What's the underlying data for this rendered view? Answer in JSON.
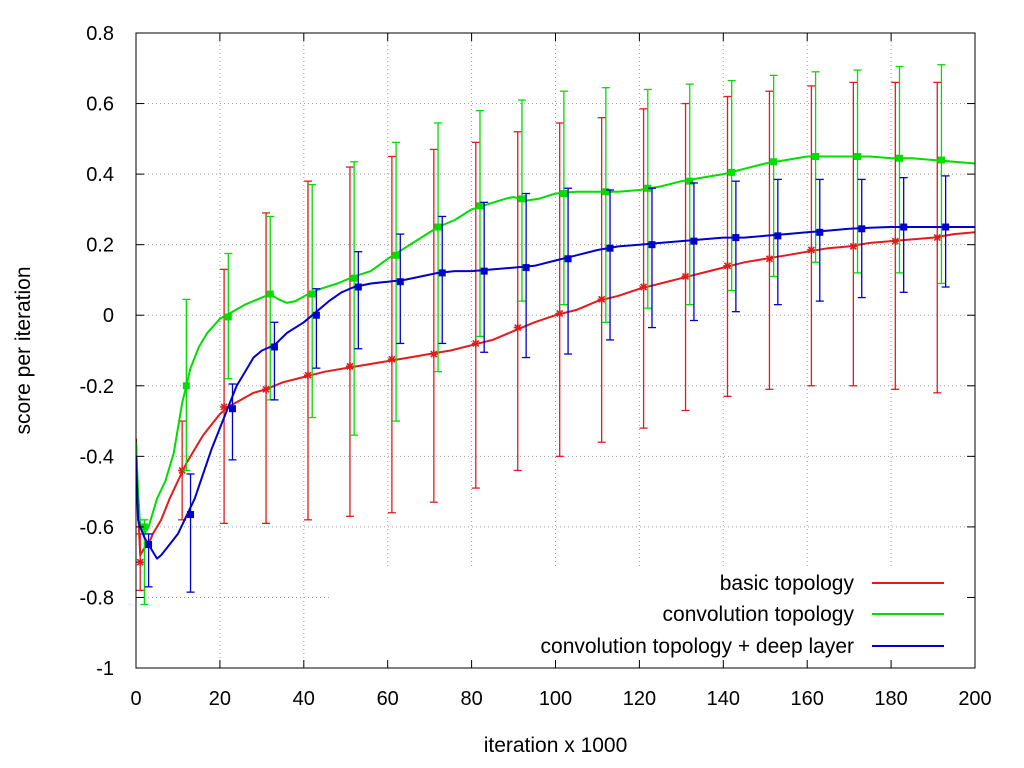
{
  "chart_data": {
    "type": "line",
    "title": "",
    "xlabel": "iteration x 1000",
    "ylabel": "score per iteration",
    "xlim": [
      0,
      200
    ],
    "ylim": [
      -1,
      0.8
    ],
    "xticks": [
      0,
      20,
      40,
      60,
      80,
      100,
      120,
      140,
      160,
      180,
      200
    ],
    "yticks": [
      -1,
      -0.8,
      -0.6,
      -0.4,
      -0.2,
      0,
      0.2,
      0.4,
      0.6,
      0.8
    ],
    "xtick_labels": [
      "0",
      "20",
      "40",
      "60",
      "80",
      "100",
      "120",
      "140",
      "160",
      "180",
      "200"
    ],
    "ytick_labels": [
      "-1",
      "-0.8",
      "-0.6",
      "-0.4",
      "-0.2",
      "0",
      "0.2",
      "0.4",
      "0.6",
      "0.8"
    ],
    "grid": true,
    "legend_position": "bottom-right",
    "series": [
      {
        "name": "basic topology",
        "color": "#e41a1c",
        "marker": "star",
        "line": [
          [
            0,
            -0.35
          ],
          [
            0.5,
            -0.55
          ],
          [
            1,
            -0.68
          ],
          [
            2,
            -0.66
          ],
          [
            3,
            -0.65
          ],
          [
            4,
            -0.62
          ],
          [
            5,
            -0.6
          ],
          [
            6,
            -0.58
          ],
          [
            8,
            -0.52
          ],
          [
            10,
            -0.47
          ],
          [
            12,
            -0.42
          ],
          [
            14,
            -0.38
          ],
          [
            16,
            -0.34
          ],
          [
            18,
            -0.31
          ],
          [
            20,
            -0.28
          ],
          [
            22,
            -0.26
          ],
          [
            25,
            -0.24
          ],
          [
            28,
            -0.22
          ],
          [
            31,
            -0.21
          ],
          [
            35,
            -0.19
          ],
          [
            40,
            -0.175
          ],
          [
            45,
            -0.16
          ],
          [
            50,
            -0.15
          ],
          [
            55,
            -0.14
          ],
          [
            60,
            -0.13
          ],
          [
            65,
            -0.12
          ],
          [
            70,
            -0.11
          ],
          [
            75,
            -0.1
          ],
          [
            80,
            -0.085
          ],
          [
            85,
            -0.07
          ],
          [
            90,
            -0.045
          ],
          [
            95,
            -0.02
          ],
          [
            100,
            0.0
          ],
          [
            105,
            0.015
          ],
          [
            110,
            0.04
          ],
          [
            115,
            0.055
          ],
          [
            120,
            0.075
          ],
          [
            125,
            0.09
          ],
          [
            130,
            0.105
          ],
          [
            135,
            0.12
          ],
          [
            140,
            0.135
          ],
          [
            145,
            0.15
          ],
          [
            150,
            0.16
          ],
          [
            155,
            0.17
          ],
          [
            160,
            0.18
          ],
          [
            165,
            0.19
          ],
          [
            170,
            0.195
          ],
          [
            175,
            0.205
          ],
          [
            180,
            0.21
          ],
          [
            185,
            0.215
          ],
          [
            190,
            0.22
          ],
          [
            195,
            0.23
          ],
          [
            200,
            0.235
          ]
        ],
        "points": [
          {
            "x": 1,
            "y": -0.7,
            "low": -0.78,
            "high": -0.62
          },
          {
            "x": 11,
            "y": -0.44,
            "low": -0.58,
            "high": -0.3
          },
          {
            "x": 21,
            "y": -0.26,
            "low": -0.59,
            "high": 0.13
          },
          {
            "x": 31,
            "y": -0.21,
            "low": -0.59,
            "high": 0.29
          },
          {
            "x": 41,
            "y": -0.17,
            "low": -0.58,
            "high": 0.38
          },
          {
            "x": 51,
            "y": -0.145,
            "low": -0.57,
            "high": 0.42
          },
          {
            "x": 61,
            "y": -0.125,
            "low": -0.56,
            "high": 0.45
          },
          {
            "x": 71,
            "y": -0.11,
            "low": -0.53,
            "high": 0.47
          },
          {
            "x": 81,
            "y": -0.08,
            "low": -0.49,
            "high": 0.49
          },
          {
            "x": 91,
            "y": -0.035,
            "low": -0.44,
            "high": 0.52
          },
          {
            "x": 101,
            "y": 0.005,
            "low": -0.4,
            "high": 0.545
          },
          {
            "x": 111,
            "y": 0.045,
            "low": -0.36,
            "high": 0.56
          },
          {
            "x": 121,
            "y": 0.08,
            "low": -0.32,
            "high": 0.585
          },
          {
            "x": 131,
            "y": 0.11,
            "low": -0.27,
            "high": 0.6
          },
          {
            "x": 141,
            "y": 0.14,
            "low": -0.23,
            "high": 0.62
          },
          {
            "x": 151,
            "y": 0.16,
            "low": -0.21,
            "high": 0.635
          },
          {
            "x": 161,
            "y": 0.185,
            "low": -0.2,
            "high": 0.65
          },
          {
            "x": 171,
            "y": 0.195,
            "low": -0.2,
            "high": 0.66
          },
          {
            "x": 181,
            "y": 0.21,
            "low": -0.21,
            "high": 0.66
          },
          {
            "x": 191,
            "y": 0.22,
            "low": -0.22,
            "high": 0.66
          }
        ]
      },
      {
        "name": "convolution topology",
        "color": "#00dd00",
        "marker": "square",
        "line": [
          [
            0,
            -0.36
          ],
          [
            0.5,
            -0.5
          ],
          [
            1,
            -0.6
          ],
          [
            2,
            -0.62
          ],
          [
            3,
            -0.6
          ],
          [
            4,
            -0.56
          ],
          [
            5,
            -0.52
          ],
          [
            7,
            -0.47
          ],
          [
            9,
            -0.39
          ],
          [
            11,
            -0.25
          ],
          [
            13,
            -0.15
          ],
          [
            15,
            -0.09
          ],
          [
            17,
            -0.05
          ],
          [
            20,
            -0.01
          ],
          [
            23,
            0.01
          ],
          [
            26,
            0.03
          ],
          [
            29,
            0.045
          ],
          [
            32,
            0.06
          ],
          [
            34,
            0.045
          ],
          [
            36,
            0.035
          ],
          [
            38,
            0.04
          ],
          [
            41,
            0.06
          ],
          [
            44,
            0.075
          ],
          [
            48,
            0.09
          ],
          [
            52,
            0.11
          ],
          [
            56,
            0.125
          ],
          [
            60,
            0.16
          ],
          [
            64,
            0.19
          ],
          [
            68,
            0.22
          ],
          [
            72,
            0.25
          ],
          [
            76,
            0.27
          ],
          [
            80,
            0.3
          ],
          [
            84,
            0.315
          ],
          [
            88,
            0.33
          ],
          [
            90,
            0.335
          ],
          [
            93,
            0.325
          ],
          [
            96,
            0.33
          ],
          [
            100,
            0.345
          ],
          [
            105,
            0.35
          ],
          [
            110,
            0.35
          ],
          [
            115,
            0.35
          ],
          [
            120,
            0.355
          ],
          [
            125,
            0.365
          ],
          [
            130,
            0.38
          ],
          [
            135,
            0.39
          ],
          [
            140,
            0.4
          ],
          [
            145,
            0.415
          ],
          [
            150,
            0.43
          ],
          [
            155,
            0.44
          ],
          [
            160,
            0.45
          ],
          [
            165,
            0.45
          ],
          [
            170,
            0.45
          ],
          [
            175,
            0.45
          ],
          [
            180,
            0.445
          ],
          [
            185,
            0.445
          ],
          [
            190,
            0.44
          ],
          [
            195,
            0.435
          ],
          [
            200,
            0.43
          ]
        ],
        "points": [
          {
            "x": 2,
            "y": -0.6,
            "low": -0.82,
            "high": -0.58
          },
          {
            "x": 12,
            "y": -0.2,
            "low": -0.44,
            "high": 0.045
          },
          {
            "x": 22,
            "y": -0.005,
            "low": -0.18,
            "high": 0.175
          },
          {
            "x": 32,
            "y": 0.06,
            "low": -0.24,
            "high": 0.28
          },
          {
            "x": 42,
            "y": 0.06,
            "low": -0.29,
            "high": 0.37
          },
          {
            "x": 52,
            "y": 0.105,
            "low": -0.34,
            "high": 0.435
          },
          {
            "x": 62,
            "y": 0.17,
            "low": -0.3,
            "high": 0.49
          },
          {
            "x": 72,
            "y": 0.25,
            "low": -0.16,
            "high": 0.545
          },
          {
            "x": 82,
            "y": 0.31,
            "low": -0.06,
            "high": 0.58
          },
          {
            "x": 92,
            "y": 0.33,
            "low": 0.04,
            "high": 0.61
          },
          {
            "x": 102,
            "y": 0.345,
            "low": 0.03,
            "high": 0.635
          },
          {
            "x": 112,
            "y": 0.35,
            "low": -0.02,
            "high": 0.645
          },
          {
            "x": 122,
            "y": 0.36,
            "low": 0.02,
            "high": 0.64
          },
          {
            "x": 132,
            "y": 0.38,
            "low": 0.03,
            "high": 0.655
          },
          {
            "x": 142,
            "y": 0.405,
            "low": 0.07,
            "high": 0.665
          },
          {
            "x": 152,
            "y": 0.435,
            "low": 0.11,
            "high": 0.68
          },
          {
            "x": 162,
            "y": 0.45,
            "low": 0.15,
            "high": 0.69
          },
          {
            "x": 172,
            "y": 0.45,
            "low": 0.12,
            "high": 0.695
          },
          {
            "x": 182,
            "y": 0.445,
            "low": 0.12,
            "high": 0.705
          },
          {
            "x": 192,
            "y": 0.44,
            "low": 0.09,
            "high": 0.71
          }
        ]
      },
      {
        "name": "convolution topology + deep layer",
        "color": "#0000cc",
        "marker": "square",
        "line": [
          [
            0,
            -0.4
          ],
          [
            0.5,
            -0.58
          ],
          [
            1,
            -0.6
          ],
          [
            2,
            -0.63
          ],
          [
            3,
            -0.65
          ],
          [
            4,
            -0.67
          ],
          [
            5,
            -0.69
          ],
          [
            6,
            -0.68
          ],
          [
            8,
            -0.65
          ],
          [
            10,
            -0.62
          ],
          [
            12,
            -0.57
          ],
          [
            14,
            -0.52
          ],
          [
            16,
            -0.45
          ],
          [
            18,
            -0.38
          ],
          [
            20,
            -0.32
          ],
          [
            22,
            -0.26
          ],
          [
            24,
            -0.2
          ],
          [
            26,
            -0.16
          ],
          [
            28,
            -0.12
          ],
          [
            30,
            -0.1
          ],
          [
            33,
            -0.085
          ],
          [
            36,
            -0.05
          ],
          [
            40,
            -0.02
          ],
          [
            43,
            0.01
          ],
          [
            46,
            0.04
          ],
          [
            49,
            0.065
          ],
          [
            52,
            0.08
          ],
          [
            56,
            0.09
          ],
          [
            60,
            0.095
          ],
          [
            64,
            0.1
          ],
          [
            68,
            0.11
          ],
          [
            72,
            0.12
          ],
          [
            76,
            0.125
          ],
          [
            80,
            0.125
          ],
          [
            85,
            0.13
          ],
          [
            90,
            0.135
          ],
          [
            95,
            0.14
          ],
          [
            100,
            0.155
          ],
          [
            105,
            0.17
          ],
          [
            110,
            0.185
          ],
          [
            115,
            0.195
          ],
          [
            120,
            0.2
          ],
          [
            125,
            0.205
          ],
          [
            130,
            0.21
          ],
          [
            135,
            0.215
          ],
          [
            140,
            0.22
          ],
          [
            145,
            0.22
          ],
          [
            150,
            0.225
          ],
          [
            155,
            0.23
          ],
          [
            160,
            0.235
          ],
          [
            165,
            0.24
          ],
          [
            170,
            0.245
          ],
          [
            175,
            0.248
          ],
          [
            180,
            0.25
          ],
          [
            185,
            0.25
          ],
          [
            190,
            0.25
          ],
          [
            195,
            0.25
          ],
          [
            200,
            0.25
          ]
        ],
        "points": [
          {
            "x": 3,
            "y": -0.65,
            "low": -0.77,
            "high": -0.62
          },
          {
            "x": 13,
            "y": -0.565,
            "low": -0.785,
            "high": -0.45
          },
          {
            "x": 23,
            "y": -0.265,
            "low": -0.41,
            "high": -0.195
          },
          {
            "x": 33,
            "y": -0.09,
            "low": -0.24,
            "high": -0.02
          },
          {
            "x": 43,
            "y": 0.0,
            "low": -0.15,
            "high": 0.075
          },
          {
            "x": 53,
            "y": 0.08,
            "low": -0.095,
            "high": 0.18
          },
          {
            "x": 63,
            "y": 0.095,
            "low": -0.08,
            "high": 0.23
          },
          {
            "x": 73,
            "y": 0.12,
            "low": -0.08,
            "high": 0.28
          },
          {
            "x": 83,
            "y": 0.125,
            "low": -0.105,
            "high": 0.32
          },
          {
            "x": 93,
            "y": 0.135,
            "low": -0.12,
            "high": 0.345
          },
          {
            "x": 103,
            "y": 0.16,
            "low": -0.11,
            "high": 0.36
          },
          {
            "x": 113,
            "y": 0.19,
            "low": -0.07,
            "high": 0.355
          },
          {
            "x": 123,
            "y": 0.2,
            "low": -0.035,
            "high": 0.36
          },
          {
            "x": 133,
            "y": 0.21,
            "low": -0.015,
            "high": 0.375
          },
          {
            "x": 143,
            "y": 0.22,
            "low": 0.01,
            "high": 0.38
          },
          {
            "x": 153,
            "y": 0.225,
            "low": 0.03,
            "high": 0.385
          },
          {
            "x": 163,
            "y": 0.235,
            "low": 0.04,
            "high": 0.385
          },
          {
            "x": 173,
            "y": 0.245,
            "low": 0.05,
            "high": 0.385
          },
          {
            "x": 183,
            "y": 0.25,
            "low": 0.065,
            "high": 0.39
          },
          {
            "x": 193,
            "y": 0.25,
            "low": 0.08,
            "high": 0.395
          }
        ]
      }
    ]
  }
}
